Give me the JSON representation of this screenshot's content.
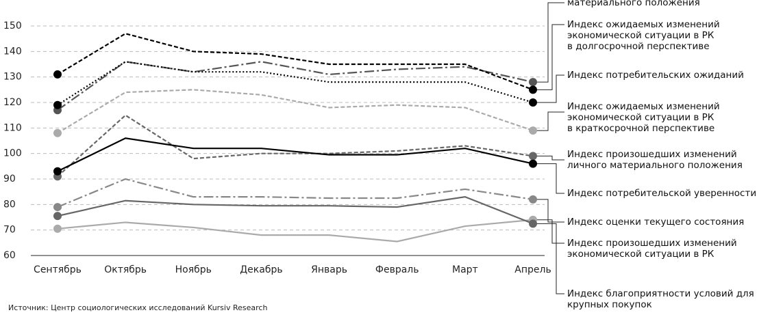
{
  "chart_data": {
    "type": "line",
    "categories": [
      "Сентябрь",
      "Октябрь",
      "Ноябрь",
      "Декабрь",
      "Январь",
      "Февраль",
      "Март",
      "Апрель"
    ],
    "ylim": [
      60,
      150
    ],
    "yticks": [
      60,
      70,
      80,
      90,
      100,
      110,
      120,
      130,
      140,
      150
    ],
    "grid": true,
    "source": "Источник: Центр социологических исследований Kursiv Research",
    "series": [
      {
        "name": "материального положения",
        "color": "#555555",
        "dash": "14,4,3,4",
        "values": [
          117,
          136,
          132,
          136,
          131,
          133,
          134,
          128
        ]
      },
      {
        "name": "Индекс ожидаемых изменений\nэкономической ситуации в РК\nв долгосрочной перспективе",
        "color": "#000000",
        "dash": "6,3",
        "values": [
          131,
          147,
          140,
          139,
          135,
          135,
          135,
          125
        ]
      },
      {
        "name": "Индекс потребительских ожиданий",
        "color": "#000000",
        "dash": "2,3",
        "values": [
          119,
          136,
          132,
          132,
          128,
          128,
          128,
          120
        ]
      },
      {
        "name": "Индекс ожидаемых изменений\nэкономической ситуации в РК\nв краткосрочной перспективе",
        "color": "#aaaaaa",
        "dash": "6,3",
        "values": [
          108,
          124,
          125,
          123,
          118,
          119,
          118,
          109
        ]
      },
      {
        "name": "Индекс произошедших изменений\nличного материального положения",
        "color": "#666666",
        "dash": "6,3",
        "values": [
          91,
          115,
          98,
          100,
          100,
          101,
          103,
          99
        ]
      },
      {
        "name": "Индекс потребительской уверенности",
        "color": "#000000",
        "dash": "",
        "values": [
          93,
          106,
          102,
          102,
          99.5,
          99.5,
          102,
          96
        ]
      },
      {
        "name": "Индекс оценки текущего состояния",
        "color": "#888888",
        "dash": "14,4,3,4",
        "values": [
          79,
          90,
          83,
          83,
          82.5,
          82.5,
          86,
          82
        ]
      },
      {
        "name": "Индекс произошедших изменений\nэкономической ситуации в РК",
        "color": "#aaaaaa",
        "dash": "",
        "values": [
          70.5,
          73,
          71,
          68,
          68,
          65.5,
          71.5,
          74
        ]
      },
      {
        "name": "Индекс благоприятности условий для\nкрупных покупок",
        "color": "#666666",
        "dash": "",
        "values": [
          75.5,
          81.5,
          80,
          79.5,
          79.5,
          79,
          83,
          72.5
        ]
      }
    ]
  }
}
